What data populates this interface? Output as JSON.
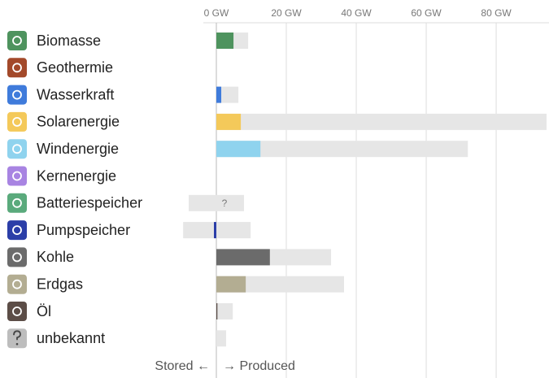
{
  "chart_data": {
    "type": "bar",
    "orientation": "horizontal",
    "categories": [
      "Biomasse",
      "Geothermie",
      "Wasserkraft",
      "Solarenergie",
      "Windenergie",
      "Kernenergie",
      "Batteriespeicher",
      "Pumpspeicher",
      "Kohle",
      "Erdgas",
      "Öl",
      "unbekannt"
    ],
    "colors": [
      "#4e935e",
      "#a3492a",
      "#3f7bdb",
      "#f4c95a",
      "#8fd3ee",
      "#a884e2",
      "#5aaa7c",
      "#2b3ea8",
      "#6b6b6b",
      "#b3ad92",
      "#5c4d47",
      "#bdbdbd"
    ],
    "series": [
      {
        "values": [
          4.9,
          0,
          1.4,
          7.0,
          12.6,
          0,
          null,
          -0.7,
          15.3,
          8.4,
          0.3,
          0
        ],
        "value_labels": [
          null,
          null,
          null,
          null,
          null,
          null,
          "?",
          null,
          null,
          null,
          null,
          null
        ]
      },
      {
        "color": "#e6e6e6",
        "values": [
          9.1,
          0,
          6.3,
          94.4,
          71.9,
          0,
          7.9,
          9.8,
          32.8,
          36.5,
          4.7,
          2.8
        ]
      },
      {
        "color": "#e6e6e6",
        "values": [
          null,
          null,
          null,
          null,
          null,
          null,
          -7.9,
          -9.5,
          null,
          null,
          null,
          null
        ]
      }
    ],
    "xlim": [
      -10,
      94.4
    ],
    "xticks": [
      {
        "value": 0,
        "label": "0 GW"
      },
      {
        "value": 20,
        "label": "20 GW"
      },
      {
        "value": 40,
        "label": "40 GW"
      },
      {
        "value": 60,
        "label": "60 GW"
      },
      {
        "value": 80,
        "label": "80 GW"
      }
    ],
    "grid": true,
    "footer_left": "Stored ←",
    "footer_right": "→ Produced"
  }
}
